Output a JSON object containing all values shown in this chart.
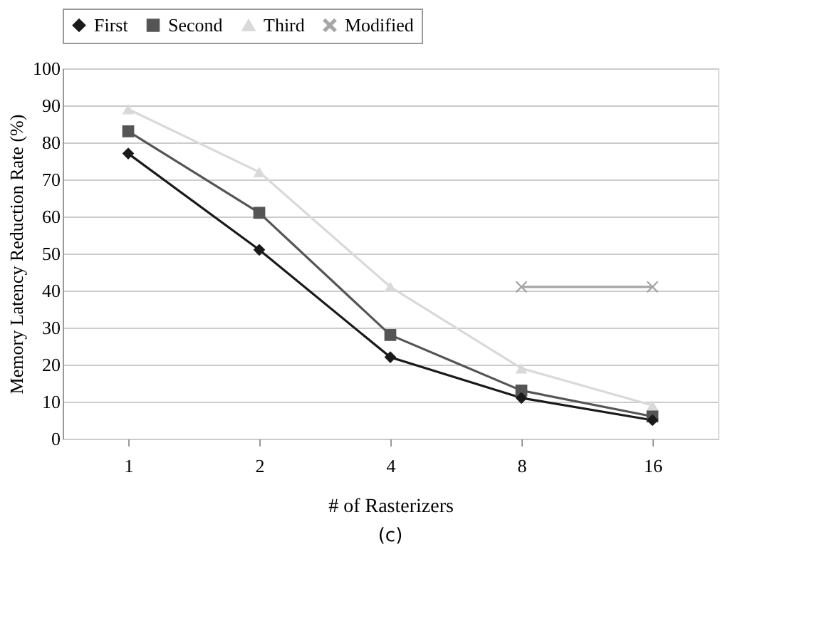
{
  "chart_data": {
    "type": "line",
    "xlabel": "# of Rasterizers",
    "ylabel": "Memory Latency Reduction Rate (%)",
    "categories": [
      "1",
      "2",
      "4",
      "8",
      "16"
    ],
    "series": [
      {
        "name": "First",
        "color": "#1a1a1a",
        "marker": "diamond",
        "values": [
          77,
          51,
          22,
          11,
          5
        ]
      },
      {
        "name": "Second",
        "color": "#555555",
        "marker": "square",
        "values": [
          83,
          61,
          28,
          13,
          6
        ]
      },
      {
        "name": "Third",
        "color": "#d9d9d9",
        "marker": "triangle",
        "values": [
          89,
          72,
          41,
          19,
          9
        ]
      },
      {
        "name": "Modified",
        "color": "#a6a6a6",
        "marker": "cross",
        "values": [
          null,
          null,
          null,
          41,
          41
        ]
      }
    ],
    "ylim": [
      0,
      100
    ],
    "yticks": [
      0,
      10,
      20,
      30,
      40,
      50,
      60,
      70,
      80,
      90,
      100
    ],
    "grid": "y",
    "legend": "top",
    "annotations": [
      "(c)"
    ]
  }
}
